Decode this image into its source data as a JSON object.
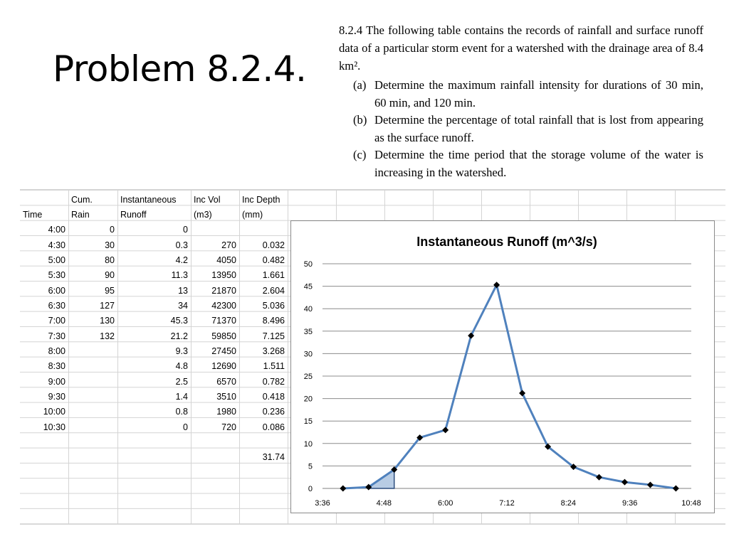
{
  "slide": {
    "title": "Problem 8.2.4."
  },
  "problem": {
    "intro": "8.2.4 The following table contains the records of rainfall and surface runoff data of a particular storm event for a watershed with the drainage area of 8.4 km².",
    "parts": [
      {
        "label": "(a)",
        "text": "Determine the maximum rainfall intensity for durations of 30 min, 60 min, and 120 min."
      },
      {
        "label": "(b)",
        "text": "Determine the percentage of total rainfall that is lost from appearing as the surface runoff."
      },
      {
        "label": "(c)",
        "text": "Determine the time period that the storage volume of the water is increasing in the watershed."
      }
    ]
  },
  "table": {
    "headers_line1": [
      "",
      "Cum.",
      "Instantaneous",
      "Inc Vol",
      "Inc Depth"
    ],
    "headers_line2": [
      "Time",
      "Rain",
      "Runoff",
      "(m3)",
      "(mm)"
    ],
    "rows": [
      [
        "4:00",
        "0",
        "0",
        "",
        ""
      ],
      [
        "4:30",
        "30",
        "0.3",
        "270",
        "0.032"
      ],
      [
        "5:00",
        "80",
        "4.2",
        "4050",
        "0.482"
      ],
      [
        "5:30",
        "90",
        "11.3",
        "13950",
        "1.661"
      ],
      [
        "6:00",
        "95",
        "13",
        "21870",
        "2.604"
      ],
      [
        "6:30",
        "127",
        "34",
        "42300",
        "5.036"
      ],
      [
        "7:00",
        "130",
        "45.3",
        "71370",
        "8.496"
      ],
      [
        "7:30",
        "132",
        "21.2",
        "59850",
        "7.125"
      ],
      [
        "8:00",
        "",
        "9.3",
        "27450",
        "3.268"
      ],
      [
        "8:30",
        "",
        "4.8",
        "12690",
        "1.511"
      ],
      [
        "9:00",
        "",
        "2.5",
        "6570",
        "0.782"
      ],
      [
        "9:30",
        "",
        "1.4",
        "3510",
        "0.418"
      ],
      [
        "10:00",
        "",
        "0.8",
        "1980",
        "0.236"
      ],
      [
        "10:30",
        "",
        "0",
        "720",
        "0.086"
      ],
      [
        "",
        "",
        "",
        "",
        ""
      ],
      [
        "",
        "",
        "",
        "",
        "31.74"
      ]
    ]
  },
  "chart_data": {
    "type": "line",
    "title": "Instantaneous Runoff (m^3/s)",
    "x": [
      "4:00",
      "4:30",
      "5:00",
      "5:30",
      "6:00",
      "6:30",
      "7:00",
      "7:30",
      "8:00",
      "8:30",
      "9:00",
      "9:30",
      "10:00",
      "10:30"
    ],
    "x_minutes": [
      240,
      270,
      300,
      330,
      360,
      390,
      420,
      450,
      480,
      510,
      540,
      570,
      600,
      630
    ],
    "series": [
      {
        "values": [
          0,
          0.3,
          4.2,
          11.3,
          13,
          34,
          45.3,
          21.2,
          9.3,
          4.8,
          2.5,
          1.4,
          0.8,
          0
        ]
      }
    ],
    "xlim_minutes": [
      216,
      648
    ],
    "xticks_minutes": [
      216,
      288,
      360,
      432,
      504,
      576,
      648
    ],
    "xtick_labels": [
      "3:36",
      "4:48",
      "6:00",
      "7:12",
      "8:24",
      "9:36",
      "10:48"
    ],
    "ylim": [
      0,
      50
    ],
    "yticks": [
      0,
      5,
      10,
      15,
      20,
      25,
      30,
      35,
      40,
      45,
      50
    ],
    "grid": true,
    "legend": "none",
    "shaded_area": {
      "from_minutes": 270,
      "to_minutes": 300
    },
    "line_color": "#4f81bd",
    "marker_color": "#000000",
    "shade_color": "#b8cce4"
  }
}
